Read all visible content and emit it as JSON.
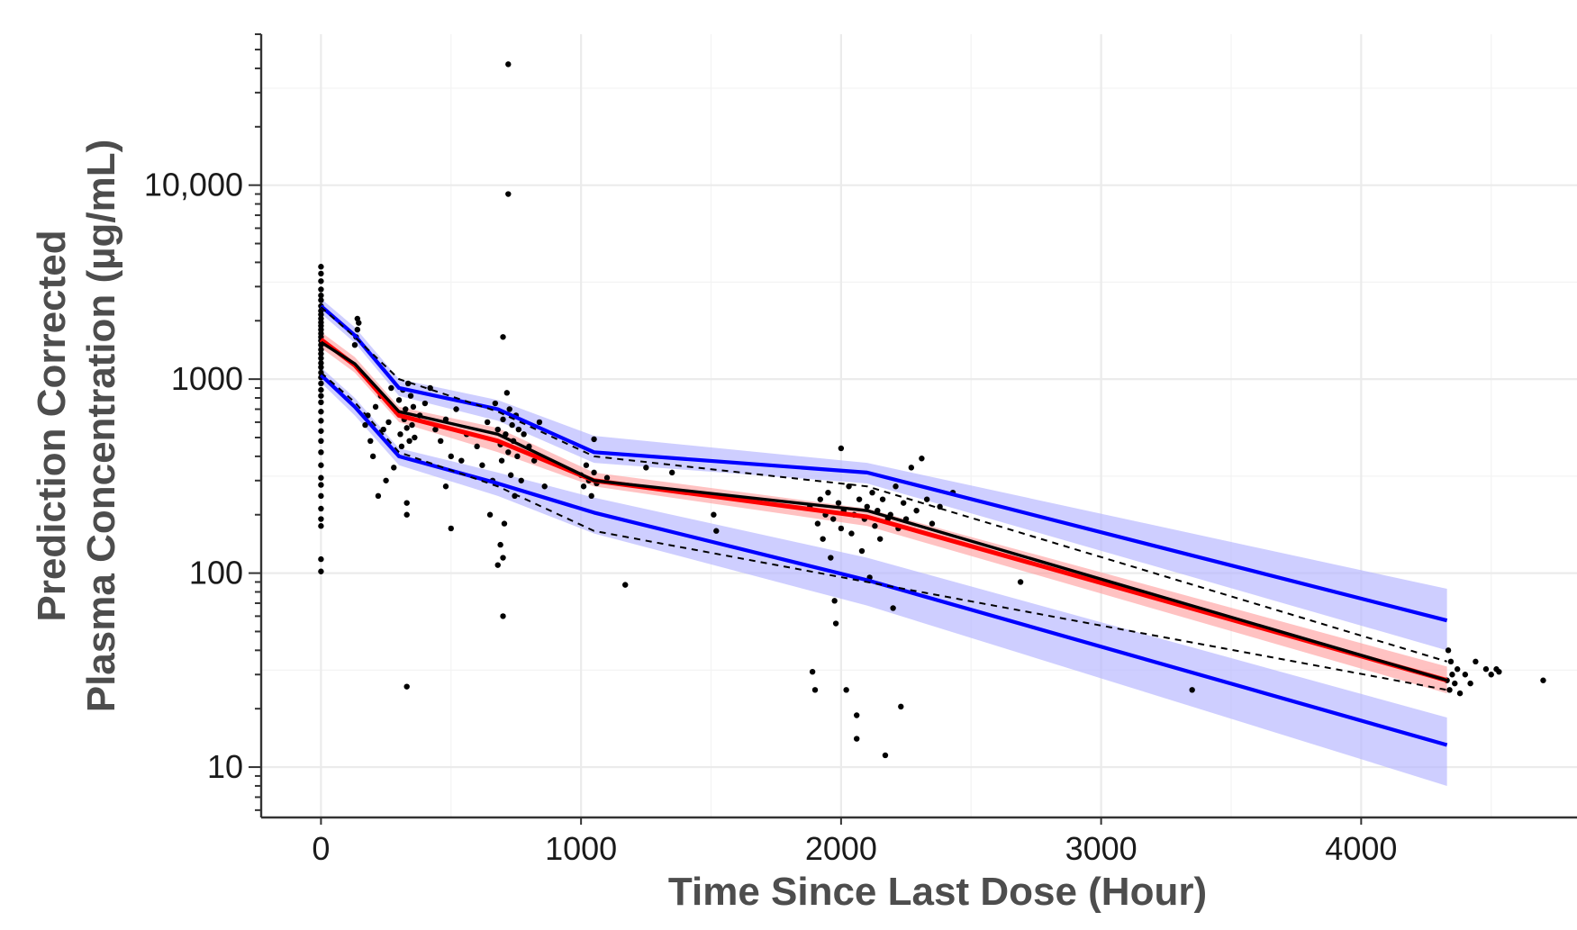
{
  "chart_data": {
    "type": "scatter",
    "title": "",
    "xlabel": "Time Since Last Dose (Hour)",
    "ylabel_lines": [
      "Prediction Corrected",
      "Plasma Concentration (µg/mL)"
    ],
    "x_ticks": [
      0,
      1000,
      2000,
      3000,
      4000
    ],
    "x_tick_labels": [
      "0",
      "1000",
      "2000",
      "3000",
      "4000"
    ],
    "y_scale": "log10",
    "y_ticks": [
      10,
      100,
      1000,
      10000
    ],
    "y_tick_labels": [
      "10",
      "100",
      "1000",
      "10,000"
    ],
    "xlim": [
      -230,
      4830
    ],
    "ylim": [
      5.5,
      60000
    ],
    "grid": true,
    "legend": "none",
    "colors": {
      "observed_median": "#000000",
      "observed_percentile": "#000000",
      "predicted_median": "#ff0000",
      "predicted_percentile": "#0000ff",
      "median_ci_band": "#ff9999",
      "percentile_ci_band": "#b3b3ff",
      "points": "#000000"
    },
    "bins_x": [
      0,
      130,
      300,
      680,
      1050,
      2100,
      4330
    ],
    "series": [
      {
        "role": "observed-median",
        "style": "solid",
        "x": [
          0,
          130,
          300,
          680,
          1050,
          2100,
          4330
        ],
        "y": [
          1550,
          1200,
          680,
          520,
          300,
          210,
          28
        ]
      },
      {
        "role": "observed-5th-percentile",
        "style": "dashed",
        "x": [
          0,
          130,
          300,
          680,
          1050,
          2100,
          4330
        ],
        "y": [
          1080,
          760,
          420,
          280,
          165,
          90,
          25
        ]
      },
      {
        "role": "observed-95th-percentile",
        "style": "dashed",
        "x": [
          0,
          130,
          300,
          680,
          1050,
          2100,
          4330
        ],
        "y": [
          2350,
          1650,
          1000,
          680,
          400,
          280,
          35
        ]
      },
      {
        "role": "predicted-median",
        "style": "solid",
        "x": [
          0,
          130,
          300,
          680,
          1050,
          2100,
          4330
        ],
        "y": [
          1600,
          1180,
          650,
          480,
          300,
          195,
          28
        ]
      },
      {
        "role": "predicted-5th-percentile",
        "style": "solid",
        "x": [
          0,
          130,
          300,
          680,
          1050,
          2100,
          4330
        ],
        "y": [
          1050,
          720,
          400,
          290,
          205,
          92,
          13
        ]
      },
      {
        "role": "predicted-95th-percentile",
        "style": "solid",
        "x": [
          0,
          130,
          300,
          680,
          1050,
          2100,
          4330
        ],
        "y": [
          2380,
          1680,
          900,
          700,
          420,
          330,
          57
        ]
      }
    ],
    "bands": [
      {
        "role": "predicted-median-ci",
        "x": [
          0,
          130,
          300,
          680,
          1050,
          2100,
          4330
        ],
        "lower": [
          1450,
          1080,
          600,
          420,
          280,
          175,
          24
        ],
        "upper": [
          1750,
          1300,
          720,
          560,
          330,
          215,
          33
        ]
      },
      {
        "role": "predicted-5th-percentile-ci",
        "x": [
          0,
          130,
          300,
          680,
          1050,
          2100,
          4330
        ],
        "lower": [
          960,
          650,
          360,
          250,
          160,
          68,
          8
        ],
        "upper": [
          1150,
          800,
          440,
          330,
          245,
          120,
          18
        ]
      },
      {
        "role": "predicted-95th-percentile-ci",
        "x": [
          0,
          130,
          300,
          680,
          1050,
          2100,
          4330
        ],
        "lower": [
          2180,
          1540,
          820,
          610,
          370,
          290,
          40
        ],
        "upper": [
          2600,
          1850,
          1000,
          780,
          510,
          370,
          83
        ]
      }
    ],
    "points": [
      [
        0,
        102
      ],
      [
        0,
        118
      ],
      [
        0,
        175
      ],
      [
        0,
        190
      ],
      [
        0,
        215
      ],
      [
        0,
        250
      ],
      [
        0,
        285
      ],
      [
        0,
        310
      ],
      [
        0,
        360
      ],
      [
        0,
        420
      ],
      [
        0,
        480
      ],
      [
        0,
        540
      ],
      [
        0,
        610
      ],
      [
        0,
        680
      ],
      [
        0,
        760
      ],
      [
        0,
        820
      ],
      [
        0,
        880
      ],
      [
        0,
        950
      ],
      [
        0,
        1020
      ],
      [
        0,
        1080
      ],
      [
        0,
        1150
      ],
      [
        0,
        1210
      ],
      [
        0,
        1280
      ],
      [
        0,
        1350
      ],
      [
        0,
        1420
      ],
      [
        0,
        1500
      ],
      [
        0,
        1580
      ],
      [
        0,
        1650
      ],
      [
        0,
        1720
      ],
      [
        0,
        1800
      ],
      [
        0,
        1880
      ],
      [
        0,
        1960
      ],
      [
        0,
        2050
      ],
      [
        0,
        2150
      ],
      [
        0,
        2250
      ],
      [
        0,
        2380
      ],
      [
        0,
        2550
      ],
      [
        0,
        2700
      ],
      [
        0,
        2900
      ],
      [
        0,
        3200
      ],
      [
        0,
        3500
      ],
      [
        0,
        3800
      ],
      [
        130,
        1500
      ],
      [
        135,
        1650
      ],
      [
        140,
        1800
      ],
      [
        145,
        1950
      ],
      [
        140,
        2050
      ],
      [
        170,
        580
      ],
      [
        180,
        650
      ],
      [
        190,
        480
      ],
      [
        200,
        400
      ],
      [
        210,
        720
      ],
      [
        220,
        250
      ],
      [
        230,
        820
      ],
      [
        240,
        550
      ],
      [
        250,
        300
      ],
      [
        260,
        600
      ],
      [
        270,
        900
      ],
      [
        280,
        350
      ],
      [
        290,
        680
      ],
      [
        300,
        780
      ],
      [
        305,
        520
      ],
      [
        310,
        450
      ],
      [
        315,
        880
      ],
      [
        320,
        620
      ],
      [
        325,
        700
      ],
      [
        330,
        560
      ],
      [
        335,
        950
      ],
      [
        340,
        480
      ],
      [
        345,
        820
      ],
      [
        350,
        580
      ],
      [
        355,
        720
      ],
      [
        360,
        500
      ],
      [
        330,
        230
      ],
      [
        330,
        200
      ],
      [
        330,
        26
      ],
      [
        380,
        650
      ],
      [
        400,
        750
      ],
      [
        420,
        900
      ],
      [
        440,
        550
      ],
      [
        460,
        480
      ],
      [
        480,
        620
      ],
      [
        500,
        400
      ],
      [
        500,
        170
      ],
      [
        480,
        280
      ],
      [
        520,
        700
      ],
      [
        540,
        380
      ],
      [
        560,
        520
      ],
      [
        600,
        450
      ],
      [
        620,
        360
      ],
      [
        640,
        600
      ],
      [
        650,
        200
      ],
      [
        660,
        300
      ],
      [
        670,
        750
      ],
      [
        680,
        550
      ],
      [
        690,
        460
      ],
      [
        695,
        380
      ],
      [
        700,
        620
      ],
      [
        705,
        180
      ],
      [
        710,
        520
      ],
      [
        715,
        850
      ],
      [
        720,
        420
      ],
      [
        725,
        700
      ],
      [
        730,
        320
      ],
      [
        735,
        580
      ],
      [
        740,
        480
      ],
      [
        745,
        250
      ],
      [
        750,
        650
      ],
      [
        755,
        400
      ],
      [
        760,
        550
      ],
      [
        700,
        120
      ],
      [
        690,
        140
      ],
      [
        680,
        110
      ],
      [
        700,
        60
      ],
      [
        700,
        1650
      ],
      [
        720,
        9000
      ],
      [
        720,
        42000
      ],
      [
        770,
        300
      ],
      [
        780,
        520
      ],
      [
        800,
        450
      ],
      [
        820,
        380
      ],
      [
        840,
        600
      ],
      [
        860,
        280
      ],
      [
        1000,
        320
      ],
      [
        1010,
        280
      ],
      [
        1020,
        360
      ],
      [
        1030,
        300
      ],
      [
        1040,
        250
      ],
      [
        1050,
        330
      ],
      [
        1060,
        290
      ],
      [
        1050,
        490
      ],
      [
        1100,
        310
      ],
      [
        1170,
        87
      ],
      [
        1250,
        350
      ],
      [
        1350,
        330
      ],
      [
        1510,
        200
      ],
      [
        1520,
        165
      ],
      [
        1880,
        220
      ],
      [
        1890,
        31
      ],
      [
        1900,
        25
      ],
      [
        1910,
        180
      ],
      [
        1920,
        240
      ],
      [
        1930,
        150
      ],
      [
        1940,
        200
      ],
      [
        1950,
        260
      ],
      [
        1960,
        120
      ],
      [
        1970,
        190
      ],
      [
        1975,
        72
      ],
      [
        1980,
        55
      ],
      [
        1990,
        230
      ],
      [
        2000,
        170
      ],
      [
        2000,
        440
      ],
      [
        2010,
        210
      ],
      [
        2020,
        25
      ],
      [
        2030,
        280
      ],
      [
        2040,
        160
      ],
      [
        2050,
        200
      ],
      [
        2060,
        18.5
      ],
      [
        2060,
        14
      ],
      [
        2070,
        240
      ],
      [
        2080,
        130
      ],
      [
        2090,
        190
      ],
      [
        2100,
        220
      ],
      [
        2110,
        95
      ],
      [
        2120,
        260
      ],
      [
        2130,
        175
      ],
      [
        2140,
        210
      ],
      [
        2150,
        150
      ],
      [
        2160,
        240
      ],
      [
        2170,
        11.5
      ],
      [
        2180,
        190
      ],
      [
        2190,
        200
      ],
      [
        2200,
        66
      ],
      [
        2210,
        280
      ],
      [
        2220,
        170
      ],
      [
        2230,
        20.5
      ],
      [
        2240,
        230
      ],
      [
        2250,
        190
      ],
      [
        2270,
        350
      ],
      [
        2290,
        210
      ],
      [
        2310,
        390
      ],
      [
        2330,
        240
      ],
      [
        2350,
        180
      ],
      [
        2380,
        220
      ],
      [
        2430,
        260
      ],
      [
        2690,
        90
      ],
      [
        3350,
        25
      ],
      [
        4330,
        28
      ],
      [
        4335,
        40
      ],
      [
        4340,
        25
      ],
      [
        4345,
        35
      ],
      [
        4350,
        30
      ],
      [
        4360,
        27
      ],
      [
        4370,
        32
      ],
      [
        4380,
        24
      ],
      [
        4400,
        30
      ],
      [
        4420,
        27
      ],
      [
        4440,
        35
      ],
      [
        4480,
        32
      ],
      [
        4500,
        30
      ],
      [
        4520,
        32
      ],
      [
        4530,
        31
      ],
      [
        4700,
        28
      ]
    ]
  }
}
